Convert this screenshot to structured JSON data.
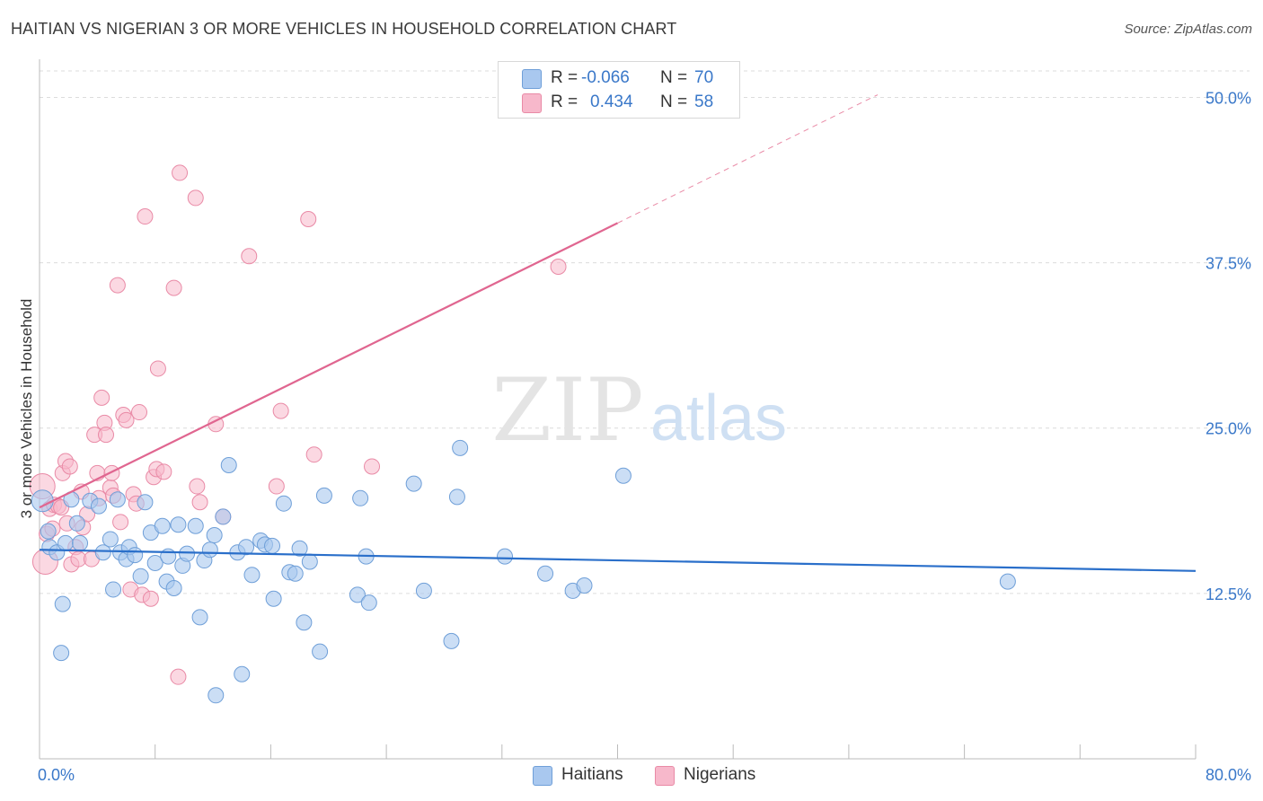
{
  "header": {
    "title": "HAITIAN VS NIGERIAN 3 OR MORE VEHICLES IN HOUSEHOLD CORRELATION CHART",
    "source": "Source: ZipAtlas.com"
  },
  "legend_top": {
    "rows": [
      {
        "r_label": "R =",
        "r_value": "-0.066",
        "n_label": "N =",
        "n_value": "70"
      },
      {
        "r_label": "R =",
        "r_value": "0.434",
        "n_label": "N =",
        "n_value": "58"
      }
    ]
  },
  "legend_bottom": {
    "haitians": "Haitians",
    "nigerians": "Nigerians"
  },
  "watermark": {
    "zip": "ZIP",
    "atlas": "atlas"
  },
  "colors": {
    "haitian_fill": "#a9c8ef",
    "haitian_stroke": "#6f9fd8",
    "haitian_line": "#2a6fca",
    "nigerian_fill": "#f7b8cb",
    "nigerian_stroke": "#e98aa6",
    "nigerian_line": "#e06690",
    "axis_text": "#3a78c9",
    "grid": "#dcdcdc"
  },
  "chart_data": {
    "type": "scatter",
    "title": "HAITIAN VS NIGERIAN 3 OR MORE VEHICLES IN HOUSEHOLD CORRELATION CHART",
    "xlabel": "",
    "ylabel": "3 or more Vehicles in Household",
    "xlim": [
      0,
      80
    ],
    "ylim": [
      0,
      52
    ],
    "x_tick_labels": [
      "0.0%",
      "80.0%"
    ],
    "y_ticks": [
      12.5,
      25.0,
      37.5,
      50.0
    ],
    "y_tick_labels": [
      "12.5%",
      "25.0%",
      "37.5%",
      "50.0%"
    ],
    "grid": "horizontal dashed",
    "series": [
      {
        "name": "Haitians",
        "r": -0.066,
        "n": 70,
        "trend": {
          "x": [
            0,
            80
          ],
          "y": [
            15.8,
            14.2
          ]
        },
        "points": [
          [
            0.2,
            19.5
          ],
          [
            0.6,
            17.2
          ],
          [
            0.7,
            16.0
          ],
          [
            1.2,
            15.6
          ],
          [
            1.5,
            8.0
          ],
          [
            1.6,
            11.7
          ],
          [
            1.8,
            16.3
          ],
          [
            2.2,
            19.6
          ],
          [
            2.6,
            17.8
          ],
          [
            2.8,
            16.3
          ],
          [
            3.5,
            19.5
          ],
          [
            4.1,
            19.1
          ],
          [
            4.4,
            15.6
          ],
          [
            4.9,
            16.6
          ],
          [
            5.1,
            12.8
          ],
          [
            5.4,
            19.6
          ],
          [
            5.6,
            15.6
          ],
          [
            6.0,
            15.1
          ],
          [
            6.2,
            16.0
          ],
          [
            6.6,
            15.4
          ],
          [
            7.0,
            13.8
          ],
          [
            7.3,
            19.4
          ],
          [
            7.7,
            17.1
          ],
          [
            8.0,
            14.8
          ],
          [
            8.5,
            17.6
          ],
          [
            8.8,
            13.4
          ],
          [
            8.9,
            15.3
          ],
          [
            9.3,
            12.9
          ],
          [
            9.6,
            17.7
          ],
          [
            9.9,
            14.6
          ],
          [
            10.2,
            15.5
          ],
          [
            10.8,
            17.6
          ],
          [
            11.1,
            10.7
          ],
          [
            11.4,
            15.0
          ],
          [
            11.8,
            15.8
          ],
          [
            12.1,
            16.9
          ],
          [
            12.2,
            4.8
          ],
          [
            12.7,
            18.3
          ],
          [
            13.1,
            22.2
          ],
          [
            13.7,
            15.6
          ],
          [
            14.0,
            6.4
          ],
          [
            14.3,
            16.0
          ],
          [
            14.7,
            13.9
          ],
          [
            15.3,
            16.5
          ],
          [
            15.6,
            16.2
          ],
          [
            16.1,
            16.1
          ],
          [
            16.2,
            12.1
          ],
          [
            16.9,
            19.3
          ],
          [
            17.3,
            14.1
          ],
          [
            17.7,
            14.0
          ],
          [
            18.0,
            15.9
          ],
          [
            18.3,
            10.3
          ],
          [
            18.7,
            14.9
          ],
          [
            19.4,
            8.1
          ],
          [
            19.7,
            19.9
          ],
          [
            22.0,
            12.4
          ],
          [
            22.2,
            19.7
          ],
          [
            22.6,
            15.3
          ],
          [
            22.8,
            11.8
          ],
          [
            25.9,
            20.8
          ],
          [
            26.6,
            12.7
          ],
          [
            28.5,
            8.9
          ],
          [
            28.9,
            19.8
          ],
          [
            29.1,
            23.5
          ],
          [
            32.2,
            15.3
          ],
          [
            35.0,
            14.0
          ],
          [
            36.9,
            12.7
          ],
          [
            37.7,
            13.1
          ],
          [
            40.4,
            21.4
          ],
          [
            67.0,
            13.4
          ]
        ]
      },
      {
        "name": "Nigerians",
        "r": 0.434,
        "n": 58,
        "trend": {
          "x": [
            0,
            40
          ],
          "y": [
            19.0,
            40.5
          ]
        },
        "trend_ext": {
          "x": [
            40,
            58
          ],
          "y": [
            40.5,
            50.2
          ]
        },
        "points": [
          [
            0.2,
            20.6
          ],
          [
            0.4,
            14.9
          ],
          [
            0.5,
            17.0
          ],
          [
            0.7,
            18.9
          ],
          [
            0.9,
            17.4
          ],
          [
            1.0,
            19.2
          ],
          [
            1.3,
            19.1
          ],
          [
            1.5,
            19.0
          ],
          [
            1.6,
            21.6
          ],
          [
            1.8,
            22.5
          ],
          [
            1.9,
            17.8
          ],
          [
            2.1,
            22.1
          ],
          [
            2.2,
            14.7
          ],
          [
            2.5,
            16.0
          ],
          [
            2.7,
            15.1
          ],
          [
            2.9,
            20.2
          ],
          [
            3.0,
            17.5
          ],
          [
            3.3,
            18.5
          ],
          [
            3.6,
            15.1
          ],
          [
            3.8,
            24.5
          ],
          [
            4.0,
            21.6
          ],
          [
            4.1,
            19.7
          ],
          [
            4.3,
            27.3
          ],
          [
            4.5,
            25.4
          ],
          [
            4.6,
            24.5
          ],
          [
            4.9,
            20.5
          ],
          [
            5.0,
            21.6
          ],
          [
            5.1,
            19.9
          ],
          [
            5.4,
            35.8
          ],
          [
            5.6,
            17.9
          ],
          [
            5.8,
            26.0
          ],
          [
            6.0,
            25.6
          ],
          [
            6.3,
            12.8
          ],
          [
            6.5,
            20.0
          ],
          [
            6.7,
            19.3
          ],
          [
            6.9,
            26.2
          ],
          [
            7.1,
            12.4
          ],
          [
            7.3,
            41.0
          ],
          [
            7.7,
            12.1
          ],
          [
            7.9,
            21.3
          ],
          [
            8.1,
            21.9
          ],
          [
            8.2,
            29.5
          ],
          [
            8.6,
            21.7
          ],
          [
            9.3,
            35.6
          ],
          [
            9.6,
            6.2
          ],
          [
            9.7,
            44.3
          ],
          [
            10.8,
            42.4
          ],
          [
            10.9,
            20.6
          ],
          [
            11.1,
            19.4
          ],
          [
            12.2,
            25.3
          ],
          [
            12.7,
            18.3
          ],
          [
            14.5,
            38.0
          ],
          [
            16.4,
            20.6
          ],
          [
            16.7,
            26.3
          ],
          [
            18.6,
            40.8
          ],
          [
            19.0,
            23.0
          ],
          [
            23.0,
            22.1
          ],
          [
            35.9,
            37.2
          ]
        ]
      }
    ]
  }
}
